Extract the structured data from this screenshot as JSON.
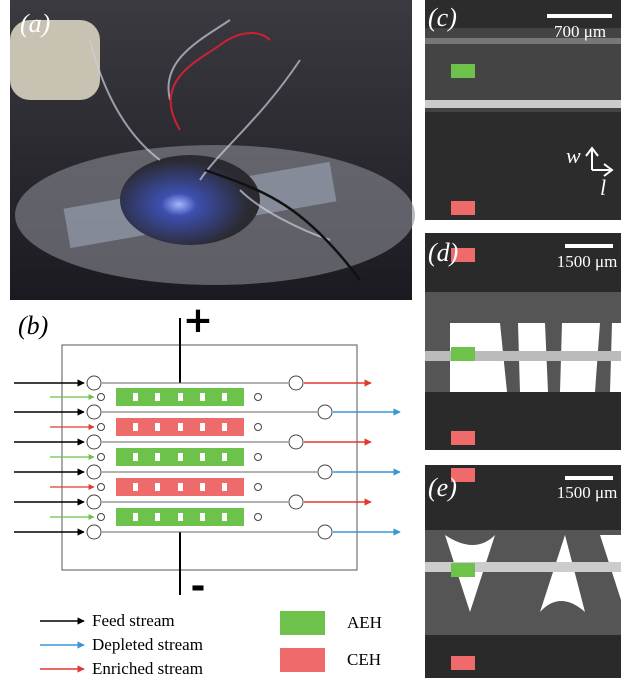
{
  "panels": {
    "a": {
      "label": "(a)"
    },
    "b": {
      "label": "(b)",
      "plus": "+",
      "minus": "-"
    },
    "c": {
      "label": "(c)",
      "scale_bar": "700 μm",
      "axis_w": "w",
      "axis_l": "l"
    },
    "d": {
      "label": "(d)",
      "scale_bar": "1500 μm"
    },
    "e": {
      "label": "(e)",
      "scale_bar": "1500 μm"
    }
  },
  "legend": {
    "feed": "Feed stream",
    "depleted": "Depleted stream",
    "enriched": "Enriched stream",
    "aeh": "AEH",
    "ceh": "CEH"
  }
}
